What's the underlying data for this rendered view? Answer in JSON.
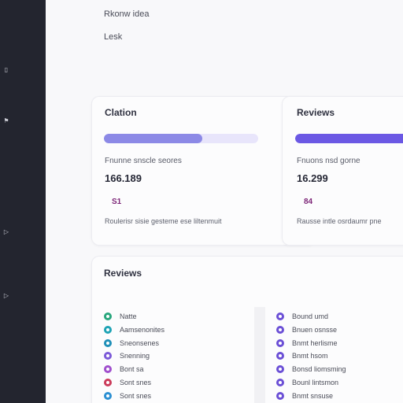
{
  "header": {
    "line1": "Rkonw  idea",
    "line2": "Lesk"
  },
  "cards": [
    {
      "title": "Clation",
      "progress": 0.64,
      "progress_color": "#8c89e6",
      "metric_label": "Fnunne snscle seores",
      "metric_value": "166.189",
      "badge": "S1",
      "footer": "Roulerisr sisie gesteme ese liltenmuit"
    },
    {
      "title": "Reviews",
      "progress": 1.0,
      "progress_color": "#6b58e4",
      "metric_label": "Fnuons nsd gorne",
      "metric_value": "16.299",
      "badge": "84",
      "footer": "Rausse intle osrdaumr pne"
    }
  ],
  "reviews": {
    "title": "Reviews",
    "left_items": [
      {
        "label": "Natte",
        "color": "#28a67c"
      },
      {
        "label": "Aamsenonites",
        "color": "#1ea3b5"
      },
      {
        "label": "Sneonsenes",
        "color": "#1f8fb8"
      },
      {
        "label": "Snenning",
        "color": "#7c5ad8"
      },
      {
        "label": "Bont sa",
        "color": "#a04fcd"
      },
      {
        "label": "Sont snes",
        "color": "#cb3b5a"
      },
      {
        "label": "Sont snes",
        "color": "#2b8fd2"
      }
    ],
    "right_items": [
      {
        "label": "Bound umd",
        "color": "#6b4fd6"
      },
      {
        "label": "Bnuen osnsse",
        "color": "#6b4fd6"
      },
      {
        "label": "Bnmt herlisme",
        "color": "#6b4fd6"
      },
      {
        "label": "Bnmt hsom",
        "color": "#6b4fd6"
      },
      {
        "label": "Bonsd liomsming",
        "color": "#6b4fd6"
      },
      {
        "label": "Bounl lintsmon",
        "color": "#6b4fd6"
      },
      {
        "label": "Bnmt snsuse",
        "color": "#6b4fd6"
      }
    ]
  },
  "sidebar": {
    "items": [
      {
        "icon": "doc-icon",
        "glyph": "▯"
      },
      {
        "icon": "flag-icon",
        "glyph": "⚑"
      },
      {
        "icon": "chevron-right-icon",
        "glyph": "▷"
      },
      {
        "icon": "chevron-right-icon",
        "glyph": "▷"
      }
    ]
  }
}
